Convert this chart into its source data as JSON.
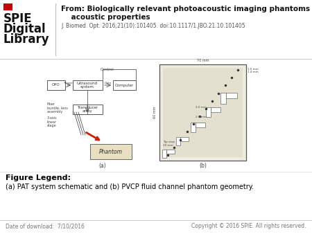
{
  "background_color": "#ffffff",
  "title_line1": "From: Biologically relevant photoacoustic imaging phantoms with tunable optical and",
  "title_line2": "    acoustic properties",
  "citation_text": "J. Biomed. Opt. 2016;21(10):101405. doi:10.1117/1.JBO.21.10.101405",
  "figure_legend_header": "Figure Legend:",
  "figure_legend_body": "(a) PAT system schematic and (b) PVCP fluid channel phantom geometry.",
  "footer_left": "Date of download:  7/10/2016",
  "footer_right": "Copyright © 2016 SPIE. All rights reserved.",
  "header_line_color": "#cccccc",
  "footer_line_color": "#cccccc",
  "text_color": "#000000",
  "title_fontsize": 7.5,
  "citation_fontsize": 5.5,
  "legend_header_fontsize": 8,
  "legend_body_fontsize": 7,
  "footer_fontsize": 5.5,
  "spie_fontsize": 12,
  "spie_small_fontsize": 9
}
